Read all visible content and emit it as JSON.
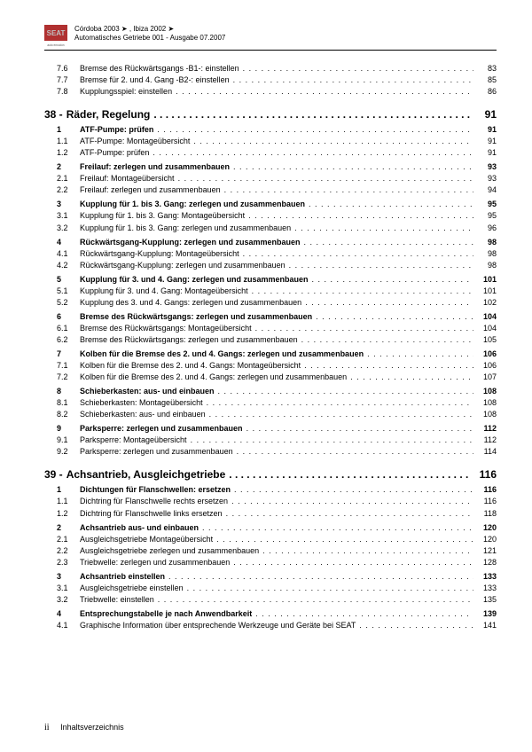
{
  "header": {
    "line1": "Córdoba 2003 ➤ , Ibiza 2002 ➤",
    "line2": "Automatisches Getriebe 001 - Ausgabe 07.2007",
    "logo_bg": "#b03030",
    "logo_text": "SEAT",
    "logo_sub": "auto emoción"
  },
  "pre_rows": [
    {
      "n": "7.6",
      "t": "Bremse des Rückwärtsgangs -B1-: einstellen",
      "p": "83"
    },
    {
      "n": "7.7",
      "t": "Bremse für 2. und 4. Gang -B2-: einstellen",
      "p": "85"
    },
    {
      "n": "7.8",
      "t": "Kupplungsspiel: einstellen",
      "p": "86"
    }
  ],
  "sections": [
    {
      "num": "38 -",
      "title": "Räder, Regelung",
      "page": "91",
      "groups": [
        [
          {
            "n": "1",
            "t": "ATF-Pumpe: prüfen",
            "p": "91",
            "b": true
          },
          {
            "n": "1.1",
            "t": "ATF-Pumpe: Montageübersicht",
            "p": "91"
          },
          {
            "n": "1.2",
            "t": "ATF-Pumpe: prüfen",
            "p": "91"
          }
        ],
        [
          {
            "n": "2",
            "t": "Freilauf: zerlegen und zusammenbauen",
            "p": "93",
            "b": true
          },
          {
            "n": "2.1",
            "t": "Freilauf: Montageübersicht",
            "p": "93"
          },
          {
            "n": "2.2",
            "t": "Freilauf: zerlegen und zusammenbauen",
            "p": "94"
          }
        ],
        [
          {
            "n": "3",
            "t": "Kupplung für 1. bis 3. Gang: zerlegen und zusammenbauen",
            "p": "95",
            "b": true
          },
          {
            "n": "3.1",
            "t": "Kupplung für 1. bis 3. Gang: Montageübersicht",
            "p": "95"
          },
          {
            "n": "3.2",
            "t": "Kupplung für 1. bis 3. Gang: zerlegen und zusammenbauen",
            "p": "96"
          }
        ],
        [
          {
            "n": "4",
            "t": "Rückwärtsgang-Kupplung: zerlegen und zusammenbauen",
            "p": "98",
            "b": true
          },
          {
            "n": "4.1",
            "t": "Rückwärtsgang-Kupplung: Montageübersicht",
            "p": "98"
          },
          {
            "n": "4.2",
            "t": "Rückwärtsgang-Kupplung: zerlegen und zusammenbauen",
            "p": "98"
          }
        ],
        [
          {
            "n": "5",
            "t": "Kupplung für 3. und 4. Gang: zerlegen und zusammenbauen",
            "p": "101",
            "b": true
          },
          {
            "n": "5.1",
            "t": "Kupplung für 3. und 4. Gang: Montageübersicht",
            "p": "101"
          },
          {
            "n": "5.2",
            "t": "Kupplung des 3. und 4. Gangs: zerlegen und zusammenbauen",
            "p": "102"
          }
        ],
        [
          {
            "n": "6",
            "t": "Bremse des Rückwärtsgangs: zerlegen und zusammenbauen",
            "p": "104",
            "b": true
          },
          {
            "n": "6.1",
            "t": "Bremse des Rückwärtsgangs: Montageübersicht",
            "p": "104"
          },
          {
            "n": "6.2",
            "t": "Bremse des Rückwärtsgangs: zerlegen und zusammenbauen",
            "p": "105"
          }
        ],
        [
          {
            "n": "7",
            "t": "Kolben für die Bremse des 2. und 4. Gangs: zerlegen und zusammenbauen",
            "p": "106",
            "b": true
          },
          {
            "n": "7.1",
            "t": "Kolben für die Bremse des 2. und 4. Gangs: Montageübersicht",
            "p": "106"
          },
          {
            "n": "7.2",
            "t": "Kolben für die Bremse des 2. und 4. Gangs: zerlegen und zusammenbauen",
            "p": "107"
          }
        ],
        [
          {
            "n": "8",
            "t": "Schieberkasten: aus- und einbauen",
            "p": "108",
            "b": true
          },
          {
            "n": "8.1",
            "t": "Schieberkasten: Montageübersicht",
            "p": "108"
          },
          {
            "n": "8.2",
            "t": "Schieberkasten: aus- und einbauen",
            "p": "108"
          }
        ],
        [
          {
            "n": "9",
            "t": "Parksperre: zerlegen und zusammenbauen",
            "p": "112",
            "b": true
          },
          {
            "n": "9.1",
            "t": "Parksperre: Montageübersicht",
            "p": "112"
          },
          {
            "n": "9.2",
            "t": "Parksperre: zerlegen und zusammenbauen",
            "p": "114"
          }
        ]
      ]
    },
    {
      "num": "39 -",
      "title": "Achsantrieb, Ausgleichgetriebe",
      "page": "116",
      "groups": [
        [
          {
            "n": "1",
            "t": "Dichtungen für Flanschwellen: ersetzen",
            "p": "116",
            "b": true
          },
          {
            "n": "1.1",
            "t": "Dichtring für Flanschwelle rechts ersetzen",
            "p": "116"
          },
          {
            "n": "1.2",
            "t": "Dichtring für Flanschwelle links ersetzen",
            "p": "118"
          }
        ],
        [
          {
            "n": "2",
            "t": "Achsantrieb aus- und einbauen",
            "p": "120",
            "b": true
          },
          {
            "n": "2.1",
            "t": "Ausgleichsgetriebe Montageübersicht",
            "p": "120"
          },
          {
            "n": "2.2",
            "t": "Ausgleichsgetriebe zerlegen und zusammenbauen",
            "p": "121"
          },
          {
            "n": "2.3",
            "t": "Triebwelle: zerlegen und zusammenbauen",
            "p": "128"
          }
        ],
        [
          {
            "n": "3",
            "t": "Achsantrieb einstellen",
            "p": "133",
            "b": true
          },
          {
            "n": "3.1",
            "t": "Ausgleichsgetriebe einstellen",
            "p": "133"
          },
          {
            "n": "3.2",
            "t": "Triebwelle: einstellen",
            "p": "135"
          }
        ],
        [
          {
            "n": "4",
            "t": "Entsprechungstabelle je nach Anwendbarkeit",
            "p": "139",
            "b": true
          },
          {
            "n": "4.1",
            "t": "Graphische Information über entsprechende Werkzeuge und Geräte bei SEAT",
            "p": "141"
          }
        ]
      ]
    }
  ],
  "footer": {
    "roman": "ii",
    "label": "Inhaltsverzeichnis"
  }
}
